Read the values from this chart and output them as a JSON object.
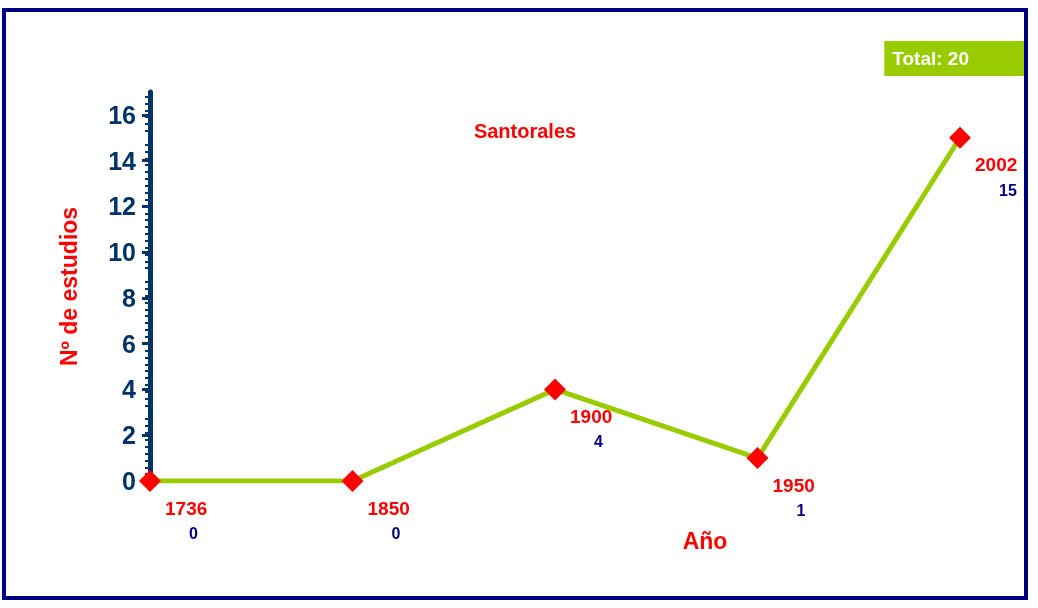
{
  "chart_data": {
    "type": "line",
    "title": "Santorales",
    "xlabel": "Año",
    "ylabel": "Nº de estudios",
    "annotations": [
      "Total: 20"
    ],
    "categories": [
      "1736",
      "1850",
      "1900",
      "1950",
      "2002"
    ],
    "series": [
      {
        "color": "#99cc00",
        "values": [
          0,
          0,
          4,
          1,
          15
        ]
      }
    ],
    "ylim": [
      0,
      17
    ],
    "yticks": [
      0,
      2,
      4,
      6,
      8,
      10,
      12,
      14,
      16
    ],
    "marker": "diamond",
    "data_labels": true
  }
}
